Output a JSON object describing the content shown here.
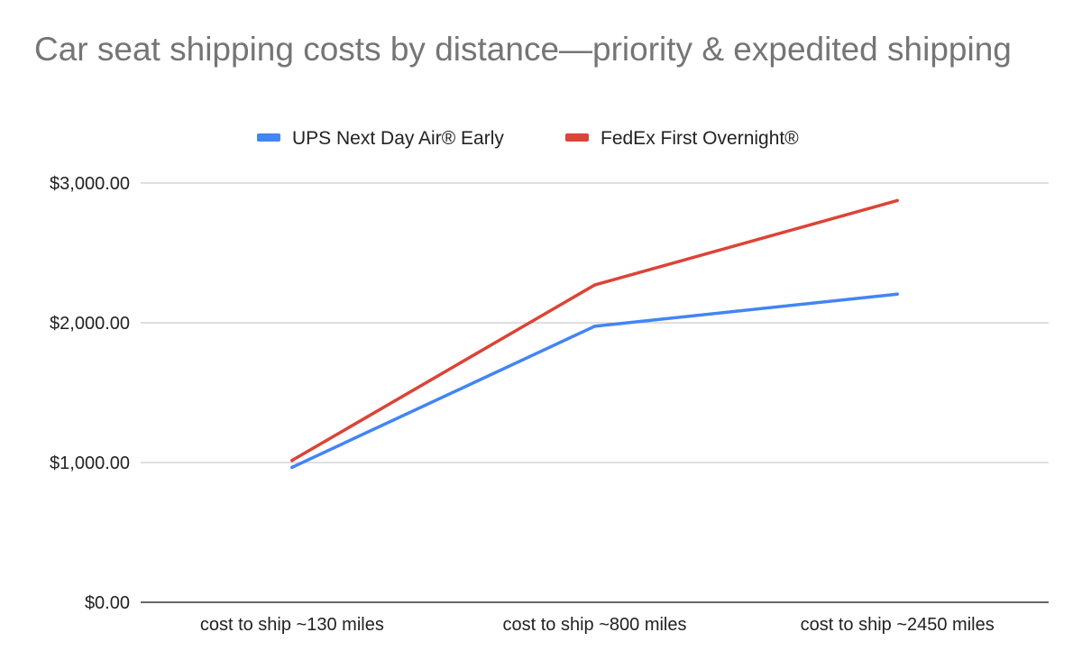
{
  "chart_data": {
    "type": "line",
    "title": "Car seat shipping costs by distance—priority & expedited shipping",
    "categories": [
      "cost to ship ~130 miles",
      "cost to ship ~800 miles",
      "cost to ship ~2450 miles"
    ],
    "series": [
      {
        "name": "UPS Next Day Air® Early",
        "color": "#4285f4",
        "values": [
          965,
          1975,
          2205
        ]
      },
      {
        "name": "FedEx First Overnight®",
        "color": "#db4437",
        "values": [
          1015,
          2270,
          2875
        ]
      }
    ],
    "ylim": [
      0,
      3000
    ],
    "yticks": [
      {
        "value": 0,
        "label": "$0.00"
      },
      {
        "value": 1000,
        "label": "$1,000.00"
      },
      {
        "value": 2000,
        "label": "$2,000.00"
      },
      {
        "value": 3000,
        "label": "$3,000.00"
      }
    ],
    "grid": true,
    "legend_position": "top"
  }
}
